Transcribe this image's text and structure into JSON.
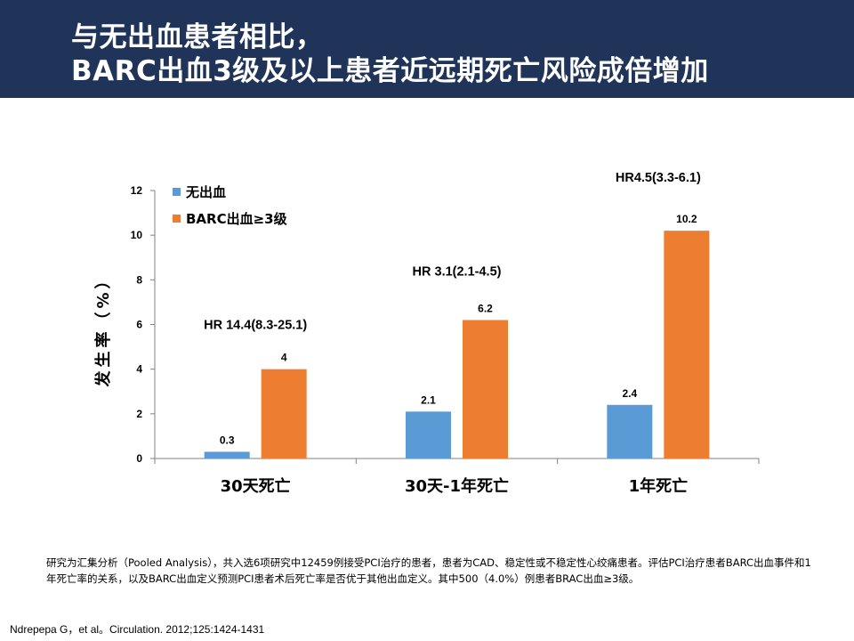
{
  "slide": {
    "title_line1": "与无出血患者相比，",
    "title_line2": "BARC出血3级及以上患者近远期死亡风险成倍增加",
    "footnote": "研究为汇集分析（Pooled Analysis），共入选6项研究中12459例接受PCI治疗的患者，患者为CAD、稳定性或不稳定性心绞痛患者。评估PCI治疗患者BARC出血事件和1年死亡率的关系，以及BARC出血定义预测PCI患者术后死亡率是否优于其他出血定义。其中500（4.0%）例患者BRAC出血≥3级。",
    "citation": "Ndrepepa G，et al。Circulation. 2012;125:1424-1431",
    "header_color": "#1f3458"
  },
  "chart_data": {
    "type": "bar",
    "categories": [
      "30天死亡",
      "30天-1年死亡",
      "1年死亡"
    ],
    "series": [
      {
        "name": "无出血",
        "values": [
          0.3,
          2.1,
          2.4
        ],
        "color": "#5b9bd5",
        "labels": [
          "0.3",
          "2.1",
          "2.4"
        ]
      },
      {
        "name": "BARC出血≥3级",
        "values": [
          4,
          6.2,
          10.2
        ],
        "color": "#ed7d31",
        "labels": [
          "4",
          "6.2",
          "10.2"
        ]
      }
    ],
    "ylabel": "发生率（%）",
    "ylim": [
      0,
      12
    ],
    "yticks": [
      0,
      2,
      4,
      6,
      8,
      10,
      12
    ],
    "legend_position": "top-left",
    "annotations": [
      {
        "text": "HR 14.4(8.3-25.1)",
        "category": 0,
        "y": 6
      },
      {
        "text": "HR 3.1(2.1-4.5)",
        "category": 1,
        "y": 8.4
      },
      {
        "text": "HR4.5(3.3-6.1)",
        "category": 2,
        "y": 12.6
      }
    ]
  }
}
